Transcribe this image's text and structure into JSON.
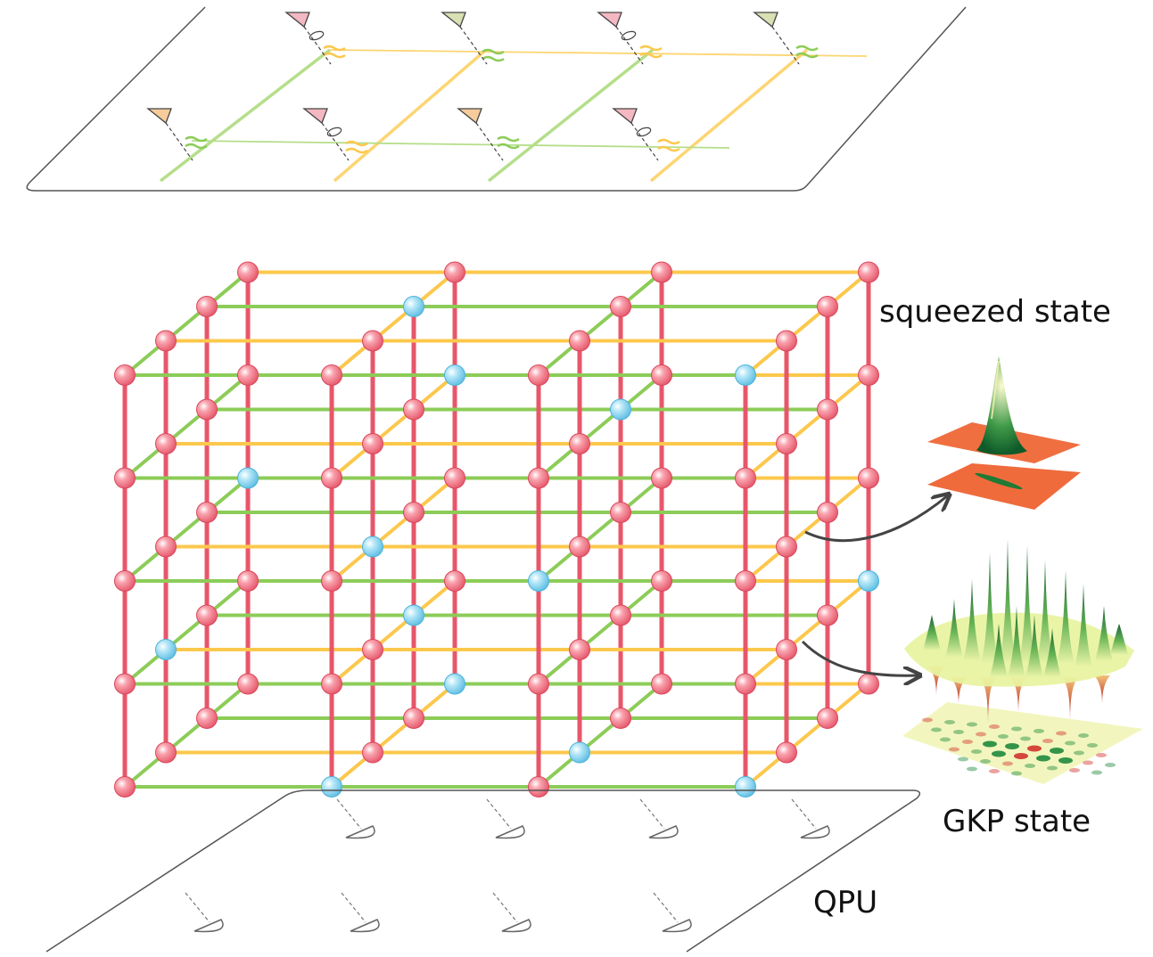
{
  "labels": {
    "squeezed": "squeezed state",
    "gkp": "GKP state",
    "qpu": "QPU"
  },
  "colors": {
    "node_red": "#f06e80",
    "node_blue": "#7fd0ef",
    "edge_vertical": "#e8566a",
    "edge_green": "#8ccc58",
    "edge_yellow": "#fcc84c",
    "plane_outline": "#555555",
    "arrow": "#444444",
    "squeezed_plane": "#ef6b3c",
    "gkp_green": "#1f8a3c",
    "gkp_red": "#d2342c",
    "gkp_base": "#f2f6be"
  },
  "lattice": {
    "levels": 5,
    "rows": 4,
    "cols": 4,
    "blue_nodes": [
      [
        0,
        0,
        1
      ],
      [
        0,
        0,
        3
      ],
      [
        0,
        1,
        2
      ],
      [
        0,
        3,
        1
      ],
      [
        1,
        1,
        0
      ],
      [
        1,
        2,
        1
      ],
      [
        1,
        3,
        3
      ],
      [
        2,
        1,
        1
      ],
      [
        2,
        3,
        0
      ],
      [
        2,
        0,
        2
      ],
      [
        3,
        2,
        2
      ],
      [
        3,
        3,
        1
      ],
      [
        4,
        0,
        3
      ],
      [
        4,
        2,
        1
      ]
    ]
  },
  "top_plane": {
    "detector_icons": [
      "pink",
      "olive",
      "pink",
      "olive",
      "orange",
      "pink",
      "orange",
      "pink"
    ]
  }
}
